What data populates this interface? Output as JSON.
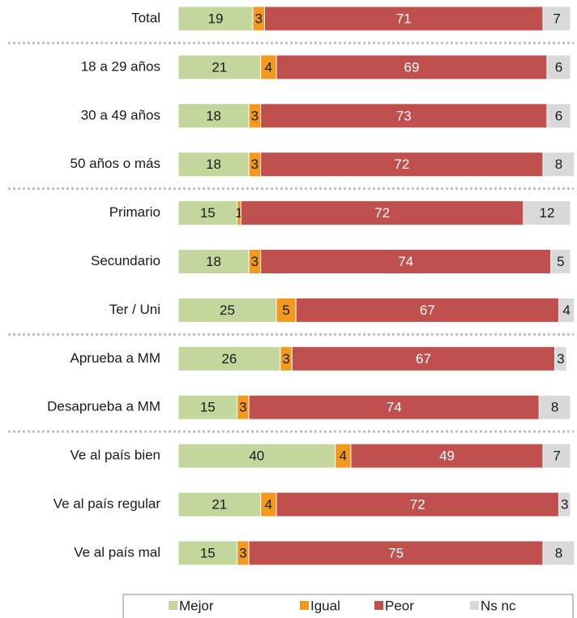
{
  "chart_data": {
    "type": "stacked_bar_horizontal",
    "categories": [
      "Total",
      "18 a 29 años",
      "30 a 49 años",
      "50 años o más",
      "Primario",
      "Secundario",
      "Ter / Uni",
      "Aprueba a MM",
      "Desaprueba a MM",
      "Ve al país bien",
      "Ve al país regular",
      "Ve al país mal"
    ],
    "series": [
      {
        "name": "Mejor",
        "color": "#c3d69b",
        "values": [
          19,
          21,
          18,
          18,
          15,
          18,
          25,
          26,
          15,
          40,
          21,
          15
        ]
      },
      {
        "name": "Igual",
        "color": "#f39a1e",
        "values": [
          3,
          4,
          3,
          3,
          1,
          3,
          5,
          3,
          3,
          4,
          4,
          3
        ]
      },
      {
        "name": "Peor",
        "color": "#c0504d",
        "values": [
          71,
          69,
          73,
          72,
          72,
          74,
          67,
          67,
          74,
          49,
          72,
          75
        ]
      },
      {
        "name": "Ns nc",
        "color": "#d9d9d9",
        "values": [
          7,
          6,
          6,
          8,
          12,
          5,
          4,
          3,
          8,
          7,
          3,
          8
        ]
      }
    ],
    "legend": "bottom"
  }
}
